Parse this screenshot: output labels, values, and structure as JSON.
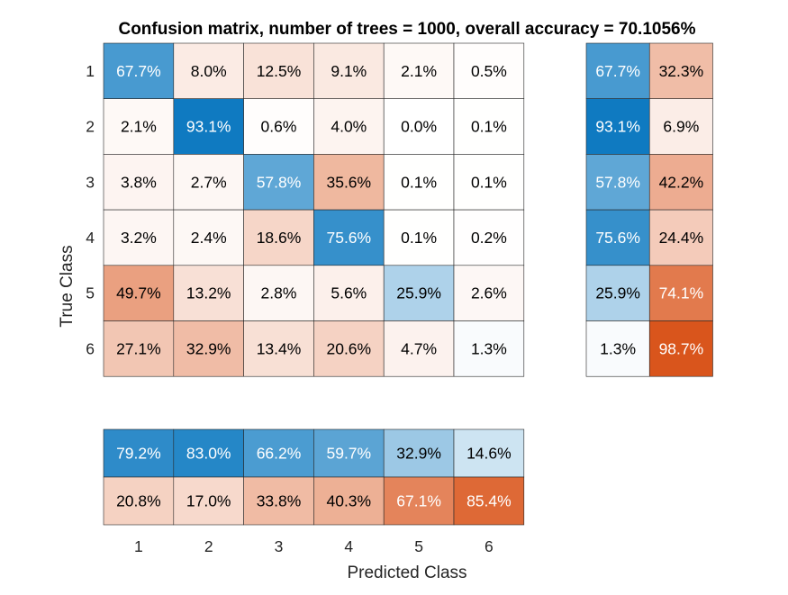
{
  "chart_data": {
    "type": "heatmap",
    "title": "Confusion matrix, number of trees = 1000, overall accuracy = 70.1056%",
    "xlabel": "Predicted Class",
    "ylabel": "True Class",
    "classes": [
      "1",
      "2",
      "3",
      "4",
      "5",
      "6"
    ],
    "value_format": "percent",
    "matrix": [
      [
        67.7,
        8.0,
        12.5,
        9.1,
        2.1,
        0.5
      ],
      [
        2.1,
        93.1,
        0.6,
        4.0,
        0.0,
        0.1
      ],
      [
        3.8,
        2.7,
        57.8,
        35.6,
        0.1,
        0.1
      ],
      [
        3.2,
        2.4,
        18.6,
        75.6,
        0.1,
        0.2
      ],
      [
        49.7,
        13.2,
        2.8,
        5.6,
        25.9,
        2.6
      ],
      [
        27.1,
        32.9,
        13.4,
        20.6,
        4.7,
        1.3
      ]
    ],
    "row_summary": [
      [
        67.7,
        32.3
      ],
      [
        93.1,
        6.9
      ],
      [
        57.8,
        42.2
      ],
      [
        75.6,
        24.4
      ],
      [
        25.9,
        74.1
      ],
      [
        1.3,
        98.7
      ]
    ],
    "column_summary": [
      [
        79.2,
        83.0,
        66.2,
        59.7,
        32.9,
        14.6
      ],
      [
        20.8,
        17.0,
        33.8,
        40.3,
        67.1,
        85.4
      ]
    ],
    "colors": {
      "correct": "#0072bd",
      "incorrect": "#d95319",
      "background": "#ffffff",
      "grid": "#262626",
      "text_dark": "#000000",
      "text_light": "#ffffff"
    }
  }
}
